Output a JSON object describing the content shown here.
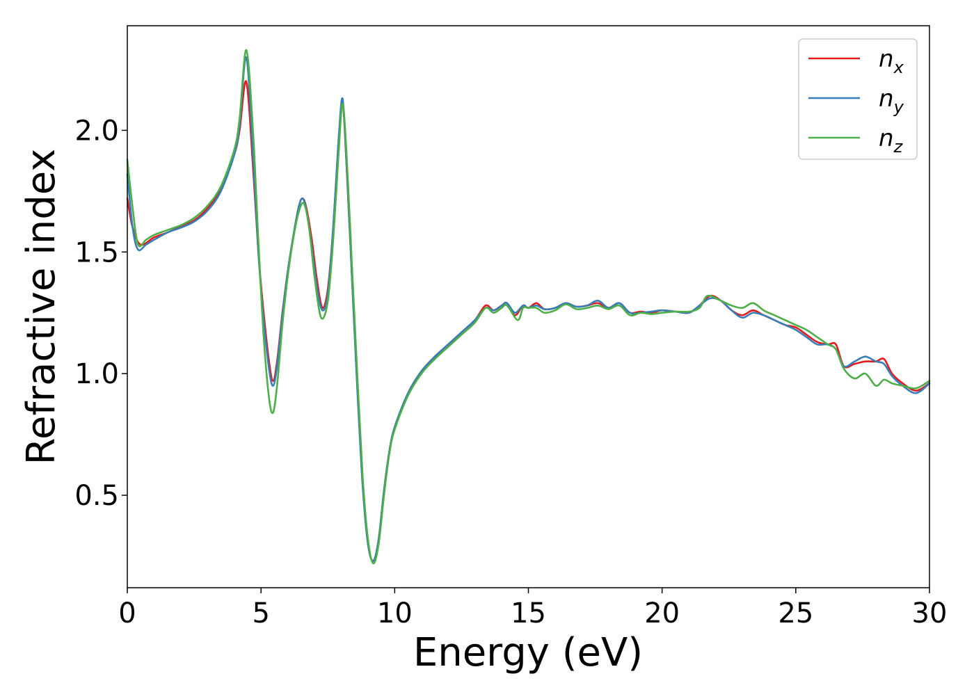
{
  "chart_data": {
    "type": "line",
    "title": "",
    "xlabel": "Energy (eV)",
    "ylabel": "Refractive index",
    "xlim": [
      0,
      30
    ],
    "ylim": [
      0.12,
      2.43
    ],
    "xticks": [
      0,
      5,
      10,
      15,
      20,
      25,
      30
    ],
    "xtick_labels": [
      "0",
      "5",
      "10",
      "15",
      "20",
      "25",
      "30"
    ],
    "yticks": [
      0.5,
      1.0,
      1.5,
      2.0
    ],
    "ytick_labels": [
      "0.5",
      "1.0",
      "1.5",
      "2.0"
    ],
    "grid": false,
    "legend_position": "top-right",
    "series": [
      {
        "name": "n",
        "subscript": "x",
        "color": "#e41a1c",
        "x": [
          0,
          0.2,
          0.5,
          1,
          1.5,
          2,
          2.5,
          3,
          3.5,
          4,
          4.2,
          4.45,
          4.7,
          4.9,
          5.1,
          5.3,
          5.45,
          5.6,
          5.8,
          6.0,
          6.2,
          6.4,
          6.55,
          6.7,
          6.9,
          7.1,
          7.3,
          7.5,
          7.7,
          7.9,
          8.05,
          8.2,
          8.4,
          8.6,
          8.8,
          9.0,
          9.2,
          9.4,
          9.6,
          9.8,
          10,
          10.5,
          11,
          11.5,
          12,
          12.5,
          13,
          13.4,
          13.7,
          14,
          14.2,
          14.5,
          14.8,
          15,
          15.3,
          15.6,
          16,
          16.4,
          16.8,
          17.2,
          17.6,
          18,
          18.4,
          18.8,
          19.2,
          19.6,
          20,
          20.5,
          21,
          21.4,
          21.8,
          22.2,
          22.6,
          23,
          23.4,
          23.8,
          24.2,
          24.6,
          25,
          25.4,
          25.8,
          26.2,
          26.5,
          26.8,
          27.2,
          27.6,
          28,
          28.3,
          28.6,
          29,
          29.5,
          30
        ],
        "y": [
          1.72,
          1.6,
          1.53,
          1.56,
          1.58,
          1.605,
          1.63,
          1.68,
          1.76,
          1.9,
          2.0,
          2.2,
          1.85,
          1.5,
          1.25,
          1.05,
          0.97,
          1.05,
          1.25,
          1.42,
          1.56,
          1.68,
          1.72,
          1.68,
          1.55,
          1.38,
          1.27,
          1.35,
          1.6,
          1.95,
          2.12,
          1.85,
          1.4,
          0.95,
          0.55,
          0.3,
          0.23,
          0.32,
          0.52,
          0.68,
          0.78,
          0.92,
          1.01,
          1.07,
          1.12,
          1.17,
          1.22,
          1.28,
          1.26,
          1.28,
          1.29,
          1.24,
          1.28,
          1.27,
          1.29,
          1.265,
          1.27,
          1.29,
          1.275,
          1.28,
          1.29,
          1.27,
          1.29,
          1.25,
          1.255,
          1.25,
          1.26,
          1.255,
          1.25,
          1.28,
          1.32,
          1.3,
          1.26,
          1.24,
          1.26,
          1.24,
          1.22,
          1.2,
          1.19,
          1.16,
          1.13,
          1.12,
          1.12,
          1.03,
          1.04,
          1.05,
          1.05,
          1.06,
          1.0,
          0.96,
          0.93,
          0.96
        ]
      },
      {
        "name": "n",
        "subscript": "y",
        "color": "#377eb8",
        "x": [
          0,
          0.2,
          0.4,
          0.7,
          1,
          1.5,
          2,
          2.5,
          3,
          3.5,
          4,
          4.2,
          4.45,
          4.7,
          4.9,
          5.1,
          5.3,
          5.45,
          5.6,
          5.8,
          6.0,
          6.2,
          6.4,
          6.55,
          6.7,
          6.9,
          7.1,
          7.3,
          7.5,
          7.7,
          7.9,
          8.05,
          8.2,
          8.4,
          8.6,
          8.8,
          9.0,
          9.2,
          9.4,
          9.6,
          9.8,
          10,
          10.5,
          11,
          11.5,
          12,
          12.5,
          13,
          13.4,
          13.7,
          14,
          14.2,
          14.5,
          14.8,
          15,
          15.3,
          15.6,
          16,
          16.4,
          16.8,
          17.2,
          17.6,
          18,
          18.4,
          18.8,
          19.2,
          19.6,
          20,
          20.5,
          21,
          21.4,
          21.8,
          22.2,
          22.6,
          23,
          23.4,
          23.8,
          24.2,
          24.6,
          25,
          25.4,
          25.8,
          26.2,
          26.5,
          26.8,
          27.2,
          27.6,
          28,
          28.3,
          28.6,
          29,
          29.5,
          30
        ],
        "y": [
          1.82,
          1.6,
          1.51,
          1.53,
          1.55,
          1.58,
          1.6,
          1.625,
          1.67,
          1.75,
          1.9,
          2.02,
          2.3,
          1.9,
          1.5,
          1.22,
          1.02,
          0.95,
          1.03,
          1.24,
          1.42,
          1.56,
          1.68,
          1.72,
          1.67,
          1.52,
          1.35,
          1.26,
          1.33,
          1.6,
          1.96,
          2.13,
          1.86,
          1.4,
          0.94,
          0.54,
          0.3,
          0.23,
          0.32,
          0.52,
          0.68,
          0.78,
          0.92,
          1.01,
          1.07,
          1.12,
          1.17,
          1.22,
          1.27,
          1.26,
          1.28,
          1.29,
          1.25,
          1.28,
          1.27,
          1.28,
          1.265,
          1.27,
          1.29,
          1.275,
          1.28,
          1.3,
          1.27,
          1.29,
          1.25,
          1.25,
          1.255,
          1.26,
          1.255,
          1.25,
          1.28,
          1.31,
          1.3,
          1.26,
          1.23,
          1.25,
          1.24,
          1.22,
          1.2,
          1.18,
          1.15,
          1.12,
          1.12,
          1.1,
          1.03,
          1.05,
          1.07,
          1.05,
          1.04,
          0.99,
          0.95,
          0.92,
          0.96
        ]
      },
      {
        "name": "n",
        "subscript": "z",
        "color": "#4daf4a",
        "x": [
          0,
          0.2,
          0.4,
          0.7,
          1,
          1.5,
          2,
          2.5,
          3,
          3.5,
          4,
          4.2,
          4.45,
          4.7,
          4.9,
          5.1,
          5.3,
          5.45,
          5.6,
          5.8,
          6.0,
          6.2,
          6.4,
          6.6,
          6.8,
          7.0,
          7.25,
          7.5,
          7.7,
          7.9,
          8.05,
          8.2,
          8.4,
          8.6,
          8.8,
          9.0,
          9.2,
          9.4,
          9.6,
          9.8,
          10,
          10.5,
          11,
          11.5,
          12,
          12.5,
          13,
          13.4,
          13.7,
          14,
          14.2,
          14.6,
          14.8,
          15,
          15.3,
          15.6,
          16,
          16.4,
          16.8,
          17.2,
          17.6,
          18,
          18.4,
          18.8,
          19.2,
          19.6,
          20,
          20.5,
          21,
          21.4,
          21.7,
          22.2,
          22.6,
          23,
          23.4,
          23.8,
          24.2,
          24.6,
          25,
          25.4,
          25.8,
          26.2,
          26.5,
          26.8,
          27.2,
          27.6,
          28,
          28.3,
          28.6,
          29,
          29.5,
          30
        ],
        "y": [
          1.88,
          1.68,
          1.53,
          1.55,
          1.57,
          1.59,
          1.61,
          1.64,
          1.69,
          1.77,
          1.92,
          2.05,
          2.33,
          2.0,
          1.55,
          1.15,
          0.9,
          0.84,
          0.95,
          1.2,
          1.4,
          1.55,
          1.66,
          1.7,
          1.6,
          1.4,
          1.23,
          1.3,
          1.55,
          1.9,
          2.11,
          1.9,
          1.45,
          1.0,
          0.58,
          0.32,
          0.22,
          0.3,
          0.5,
          0.67,
          0.77,
          0.91,
          1.0,
          1.06,
          1.11,
          1.16,
          1.21,
          1.27,
          1.25,
          1.27,
          1.28,
          1.22,
          1.27,
          1.27,
          1.27,
          1.25,
          1.26,
          1.285,
          1.265,
          1.27,
          1.28,
          1.265,
          1.28,
          1.24,
          1.25,
          1.245,
          1.25,
          1.255,
          1.255,
          1.27,
          1.32,
          1.3,
          1.28,
          1.27,
          1.29,
          1.26,
          1.24,
          1.22,
          1.2,
          1.18,
          1.15,
          1.12,
          1.1,
          1.02,
          0.98,
          1.0,
          0.95,
          0.975,
          0.96,
          0.95,
          0.94,
          0.97
        ]
      }
    ]
  }
}
